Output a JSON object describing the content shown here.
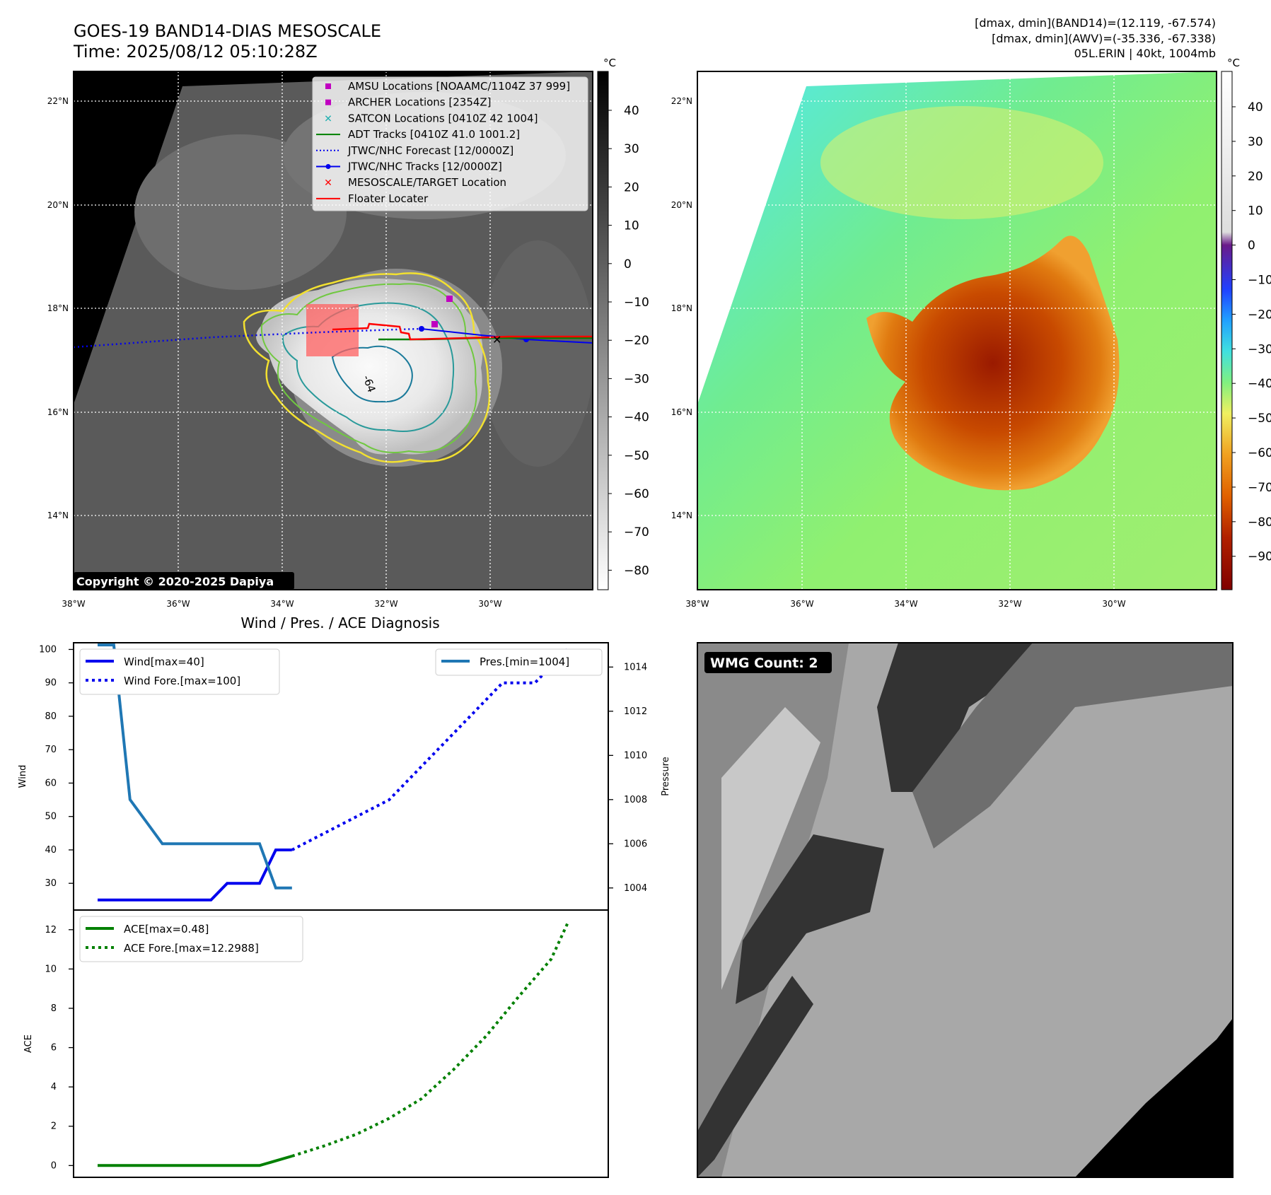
{
  "header": {
    "title_line1": "GOES-19 BAND14-DIAS MESOSCALE",
    "title_line2": "Time: 2025/08/12 05:10:28Z",
    "info_line1": "[dmax, dmin](BAND14)=(12.119, -67.574)",
    "info_line2": "[dmax, dmin](AWV)=(-35.336, -67.338)",
    "info_line3": "05L.ERIN | 40kt, 1004mb"
  },
  "map_axes": {
    "lat_labels": [
      "22°N",
      "20°N",
      "18°N",
      "16°N",
      "14°N"
    ],
    "lon_labels": [
      "38°W",
      "36°W",
      "34°W",
      "32°W",
      "30°W"
    ],
    "unit": "°C",
    "contour_label": "-64"
  },
  "ir_panel": {
    "copyright": "Copyright © 2020-2025 Dapiya",
    "colorbar_ticks": [
      "40",
      "30",
      "20",
      "10",
      "0",
      "−10",
      "−20",
      "−30",
      "−40",
      "−50",
      "−60",
      "−70",
      "−80"
    ],
    "legend": [
      {
        "label": "AMSU Locations [NOAAMC/1104Z 37 999]",
        "marker": "square",
        "color": "#c000c0"
      },
      {
        "label": "ARCHER Locations [2354Z]",
        "marker": "square",
        "color": "#c000c0"
      },
      {
        "label": "SATCON Locations [0410Z 42 1004]",
        "marker": "x",
        "color": "#20b0b0"
      },
      {
        "label": "ADT Tracks [0410Z 41.0 1001.2]",
        "marker": "line",
        "color": "#008000"
      },
      {
        "label": "JTWC/NHC Forecast [12/0000Z]",
        "marker": "dotted",
        "color": "#0000ee"
      },
      {
        "label": "JTWC/NHC Tracks [12/0000Z]",
        "marker": "line-dot",
        "color": "#0000ee"
      },
      {
        "label": "MESOSCALE/TARGET Location",
        "marker": "x",
        "color": "#ff0000"
      },
      {
        "label": "Floater Locater",
        "marker": "line",
        "color": "#ff0000"
      }
    ]
  },
  "awv_panel": {
    "colorbar_ticks": [
      "40",
      "30",
      "20",
      "10",
      "0",
      "−10",
      "−20",
      "−30",
      "−40",
      "−50",
      "−60",
      "−70",
      "−80",
      "−90"
    ]
  },
  "wmg_panel": {
    "label": "WMG Count: 2"
  },
  "diagnosis": {
    "title": "Wind / Pres. / ACE Diagnosis",
    "wind_ylabel": "Wind",
    "pres_ylabel": "Pressure",
    "ace_ylabel": "ACE",
    "legend_wind": "Wind[max=40]",
    "legend_wind_fore": "Wind Fore.[max=100]",
    "legend_pres": "Pres.[min=1004]",
    "legend_ace": "ACE[max=0.48]",
    "legend_ace_fore": "ACE Fore.[max=12.2988]"
  },
  "chart_data": [
    {
      "type": "line",
      "title": "Wind / Pres. / ACE Diagnosis",
      "ylabel": "Wind",
      "ylim": [
        22,
        102
      ],
      "yticks": [
        30,
        40,
        50,
        60,
        70,
        80,
        90,
        100
      ],
      "x": [
        0,
        1,
        2,
        3,
        4,
        5,
        6,
        7,
        8,
        9,
        10,
        11,
        12,
        13,
        14,
        15,
        16,
        17,
        18,
        19,
        20,
        21,
        22,
        23,
        24,
        25,
        26,
        27,
        28,
        29,
        30
      ],
      "series": [
        {
          "name": "Wind[max=40]",
          "style": "solid",
          "color": "#0000ee",
          "points": [
            [
              0,
              25
            ],
            [
              1,
              25
            ],
            [
              2,
              25
            ],
            [
              3,
              25
            ],
            [
              4,
              25
            ],
            [
              5,
              25
            ],
            [
              6,
              25
            ],
            [
              7,
              25
            ],
            [
              8,
              30
            ],
            [
              9,
              30
            ],
            [
              10,
              30
            ],
            [
              11,
              40
            ],
            [
              12,
              40
            ]
          ]
        },
        {
          "name": "Wind Fore.[max=100]",
          "style": "dotted",
          "color": "#0000ee",
          "points": [
            [
              12,
              40
            ],
            [
              14,
              45
            ],
            [
              16,
              50
            ],
            [
              18,
              55
            ],
            [
              20,
              65
            ],
            [
              22,
              75
            ],
            [
              24,
              85
            ],
            [
              25,
              90
            ],
            [
              27,
              90
            ],
            [
              29,
              100
            ]
          ]
        }
      ]
    },
    {
      "type": "line",
      "ylabel": "Pressure",
      "ylim": [
        1003.0,
        1015.1
      ],
      "yticks": [
        1004,
        1006,
        1008,
        1010,
        1012,
        1014
      ],
      "series": [
        {
          "name": "Pres.[min=1004]",
          "style": "solid",
          "color": "#1f77b4",
          "points": [
            [
              0,
              1015
            ],
            [
              1,
              1015
            ],
            [
              2,
              1008
            ],
            [
              3,
              1007
            ],
            [
              4,
              1006
            ],
            [
              5,
              1006
            ],
            [
              6,
              1006
            ],
            [
              7,
              1006
            ],
            [
              8,
              1006
            ],
            [
              9,
              1006
            ],
            [
              10,
              1006
            ],
            [
              11,
              1004
            ],
            [
              12,
              1004
            ]
          ]
        }
      ]
    },
    {
      "type": "line",
      "ylabel": "ACE",
      "ylim": [
        -0.6,
        13.0
      ],
      "yticks": [
        0,
        2,
        4,
        6,
        8,
        10,
        12
      ],
      "series": [
        {
          "name": "ACE[max=0.48]",
          "style": "solid",
          "color": "#008000",
          "points": [
            [
              0,
              0
            ],
            [
              2,
              0
            ],
            [
              4,
              0
            ],
            [
              6,
              0
            ],
            [
              8,
              0
            ],
            [
              10,
              0
            ],
            [
              12,
              0.48
            ]
          ]
        },
        {
          "name": "ACE Fore.[max=12.2988]",
          "style": "dotted",
          "color": "#008000",
          "points": [
            [
              12,
              0.48
            ],
            [
              14,
              1.0
            ],
            [
              16,
              1.6
            ],
            [
              18,
              2.4
            ],
            [
              20,
              3.4
            ],
            [
              22,
              4.9
            ],
            [
              24,
              6.6
            ],
            [
              26,
              8.6
            ],
            [
              28,
              10.5
            ],
            [
              29,
              12.3
            ]
          ]
        }
      ]
    }
  ]
}
